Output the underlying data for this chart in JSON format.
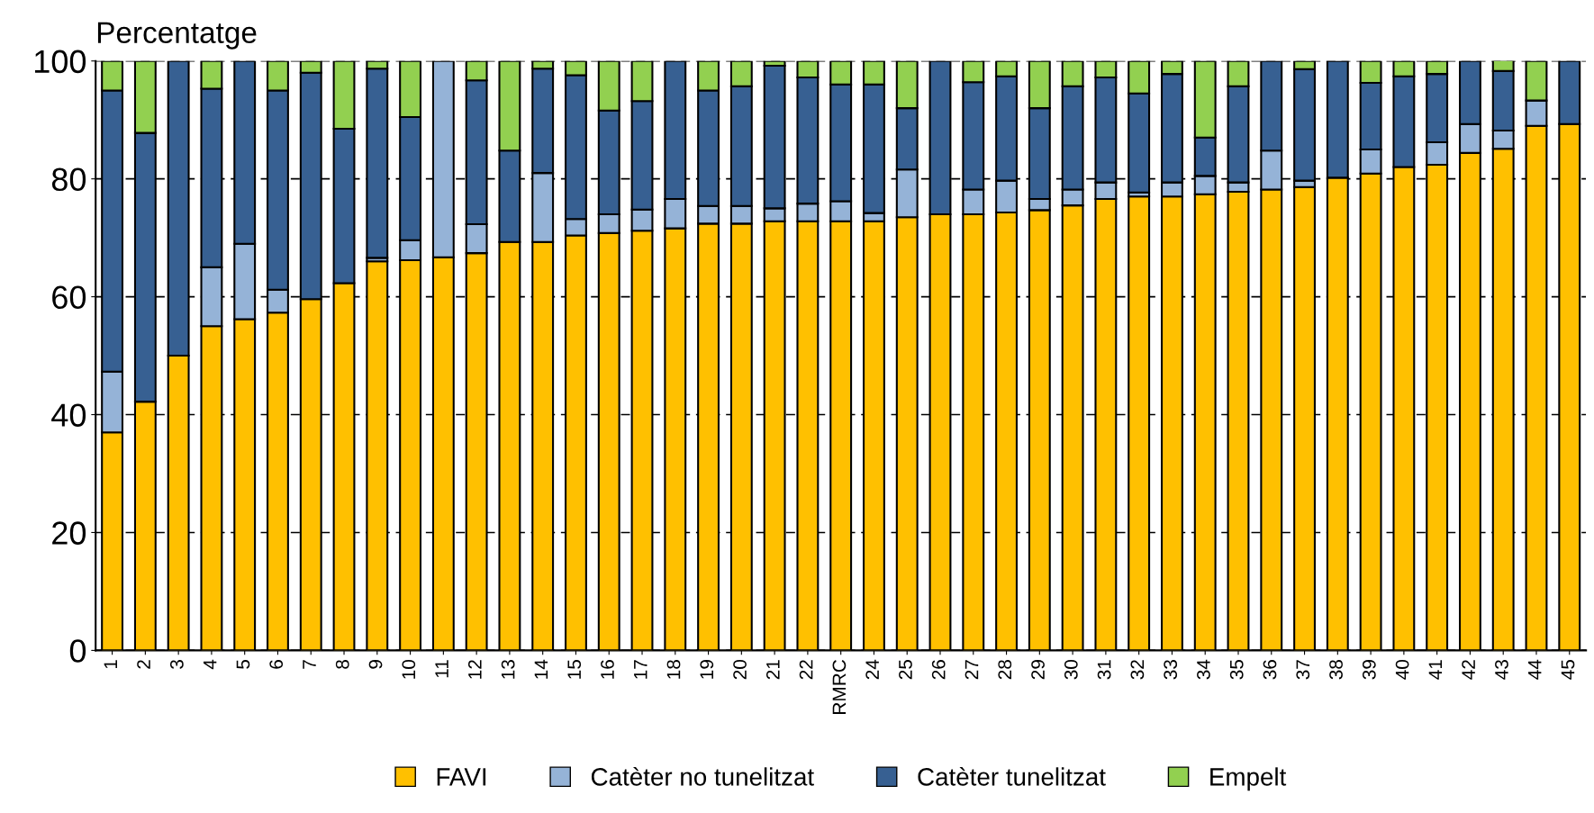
{
  "chart_data": {
    "type": "bar",
    "stacked": true,
    "ylabel": "Percentatge",
    "categories": [
      "1",
      "2",
      "3",
      "4",
      "5",
      "6",
      "7",
      "8",
      "9",
      "10",
      "11",
      "12",
      "13",
      "14",
      "15",
      "16",
      "17",
      "18",
      "19",
      "20",
      "21",
      "22",
      "RMRC",
      "24",
      "25",
      "26",
      "27",
      "28",
      "29",
      "30",
      "31",
      "32",
      "33",
      "34",
      "35",
      "36",
      "37",
      "38",
      "39",
      "40",
      "41",
      "42",
      "43",
      "44",
      "45"
    ],
    "series": [
      {
        "name": "FAVI",
        "color": "#ffc000",
        "values": [
          37,
          42.2,
          50,
          55,
          56.2,
          57.3,
          59.6,
          62.3,
          66,
          66.2,
          66.7,
          67.4,
          69.3,
          69.3,
          70.4,
          70.8,
          71.2,
          71.6,
          72.4,
          72.4,
          72.8,
          72.8,
          72.8,
          72.8,
          73.5,
          74,
          74,
          74.3,
          74.7,
          75.5,
          76.6,
          77,
          77,
          77.4,
          77.8,
          78.2,
          78.6,
          80.2,
          80.9,
          82,
          82.4,
          84.4,
          85.1,
          89,
          89.3
        ]
      },
      {
        "name": "Catèter no tunelitzat",
        "color": "#95b3d7",
        "values": [
          10.3,
          0,
          0,
          10,
          12.8,
          3.9,
          0,
          0,
          0.6,
          3.4,
          33.3,
          4.9,
          0,
          11.7,
          2.8,
          3.2,
          3.6,
          5,
          3,
          3,
          2.2,
          3,
          3.4,
          1.4,
          8.1,
          0,
          4.2,
          5.4,
          1.9,
          2.7,
          2.8,
          0.7,
          2.4,
          3.1,
          1.6,
          6.6,
          1.1,
          0,
          4.1,
          0,
          3.8,
          4.9,
          3.1,
          4.3,
          0
        ]
      },
      {
        "name": "Catèter tunelitzat",
        "color": "#376092",
        "values": [
          47.7,
          45.6,
          50,
          30.3,
          31,
          33.8,
          38.4,
          26.2,
          32.1,
          20.9,
          0,
          24.4,
          15.5,
          17.7,
          24.4,
          17.6,
          18.4,
          23.4,
          19.6,
          20.3,
          24.2,
          21.4,
          19.8,
          21.8,
          10.4,
          26,
          18.2,
          17.7,
          15.4,
          17.5,
          17.8,
          16.8,
          18.4,
          6.5,
          16.3,
          15.2,
          18.9,
          19.8,
          11.3,
          15.4,
          11.6,
          10.7,
          10.1,
          0,
          10.7
        ]
      },
      {
        "name": "Empelt",
        "color": "#92d050",
        "values": [
          5,
          12.2,
          0,
          4.7,
          0,
          5,
          2,
          11.5,
          1.3,
          9.5,
          0,
          3.3,
          15.2,
          1.3,
          2.4,
          8.4,
          6.8,
          0,
          5,
          4.3,
          0.8,
          2.8,
          4,
          4,
          8,
          0,
          3.6,
          2.6,
          8,
          4.3,
          2.8,
          5.5,
          2.2,
          13,
          4.3,
          0,
          1.4,
          0,
          3.7,
          2.6,
          2.2,
          0,
          1.8,
          6.7,
          0
        ]
      }
    ],
    "ylim": [
      0,
      100
    ],
    "yticks": [
      0,
      20,
      40,
      60,
      80,
      100
    ],
    "grid": "y",
    "legend": "bottom"
  }
}
